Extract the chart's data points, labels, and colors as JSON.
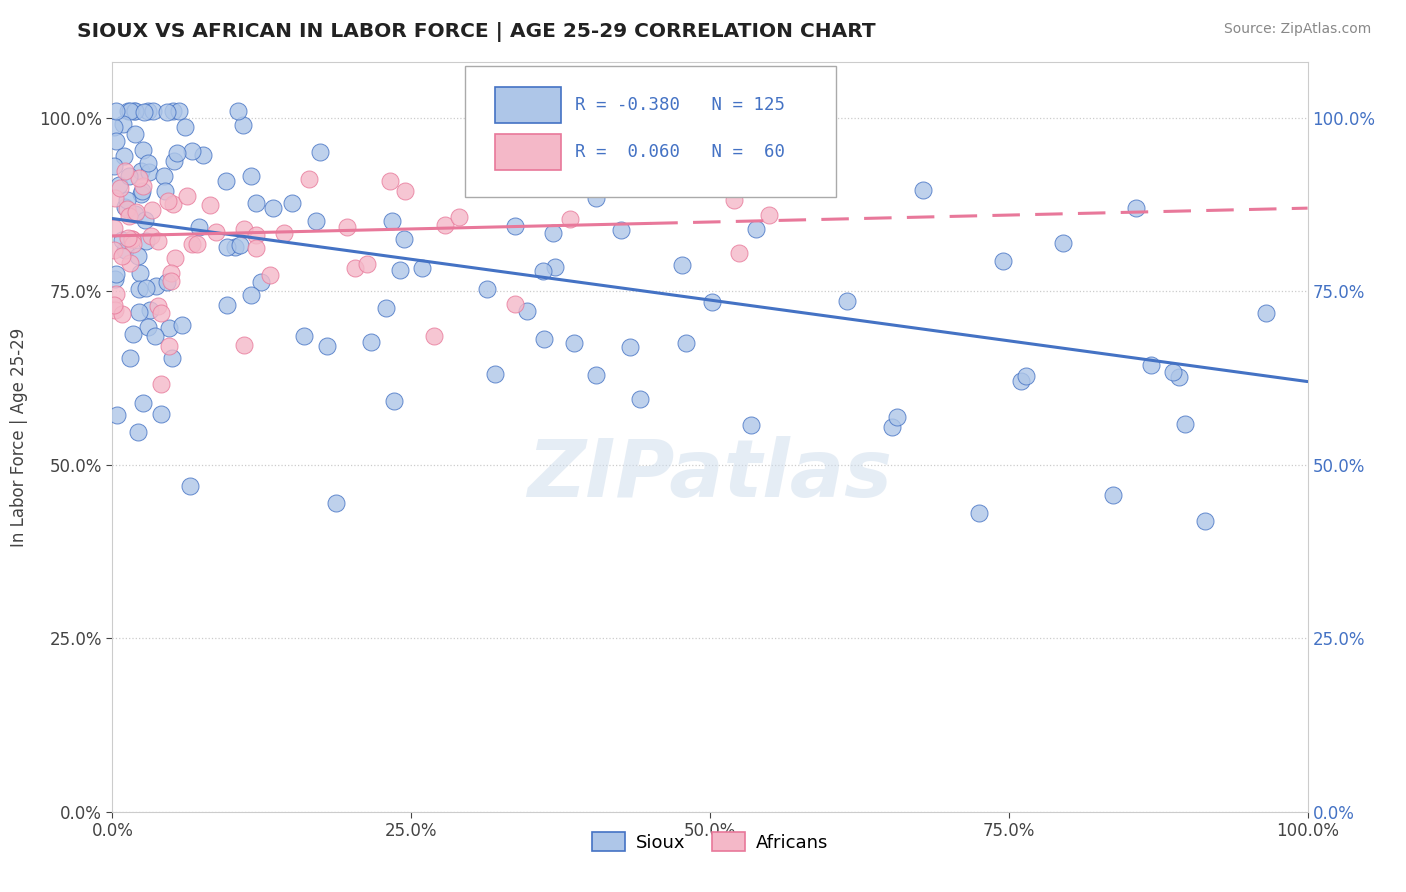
{
  "title": "SIOUX VS AFRICAN IN LABOR FORCE | AGE 25-29 CORRELATION CHART",
  "source_text": "Source: ZipAtlas.com",
  "ylabel": "In Labor Force | Age 25-29",
  "legend_sioux_label": "Sioux",
  "legend_african_label": "Africans",
  "legend_r_sioux": "R = -0.380",
  "legend_r_african": "R =  0.060",
  "legend_n_sioux": "N = 125",
  "legend_n_african": "N =  60",
  "sioux_color": "#aec6e8",
  "african_color": "#f4b8c8",
  "trendline_sioux_color": "#4472c4",
  "trendline_african_color": "#e8789a",
  "background_color": "#ffffff",
  "watermark_text": "ZIPatlas",
  "trendline_sioux_start_y": 0.855,
  "trendline_sioux_end_y": 0.62,
  "trendline_african_start_y": 0.83,
  "trendline_african_end_y": 0.87,
  "trendline_african_solid_end": 0.45,
  "xlim": [
    0.0,
    1.0
  ],
  "ylim": [
    0.0,
    1.08
  ],
  "yticks": [
    0.0,
    0.25,
    0.5,
    0.75,
    1.0
  ],
  "xticks": [
    0.0,
    0.25,
    0.5,
    0.75,
    1.0
  ]
}
